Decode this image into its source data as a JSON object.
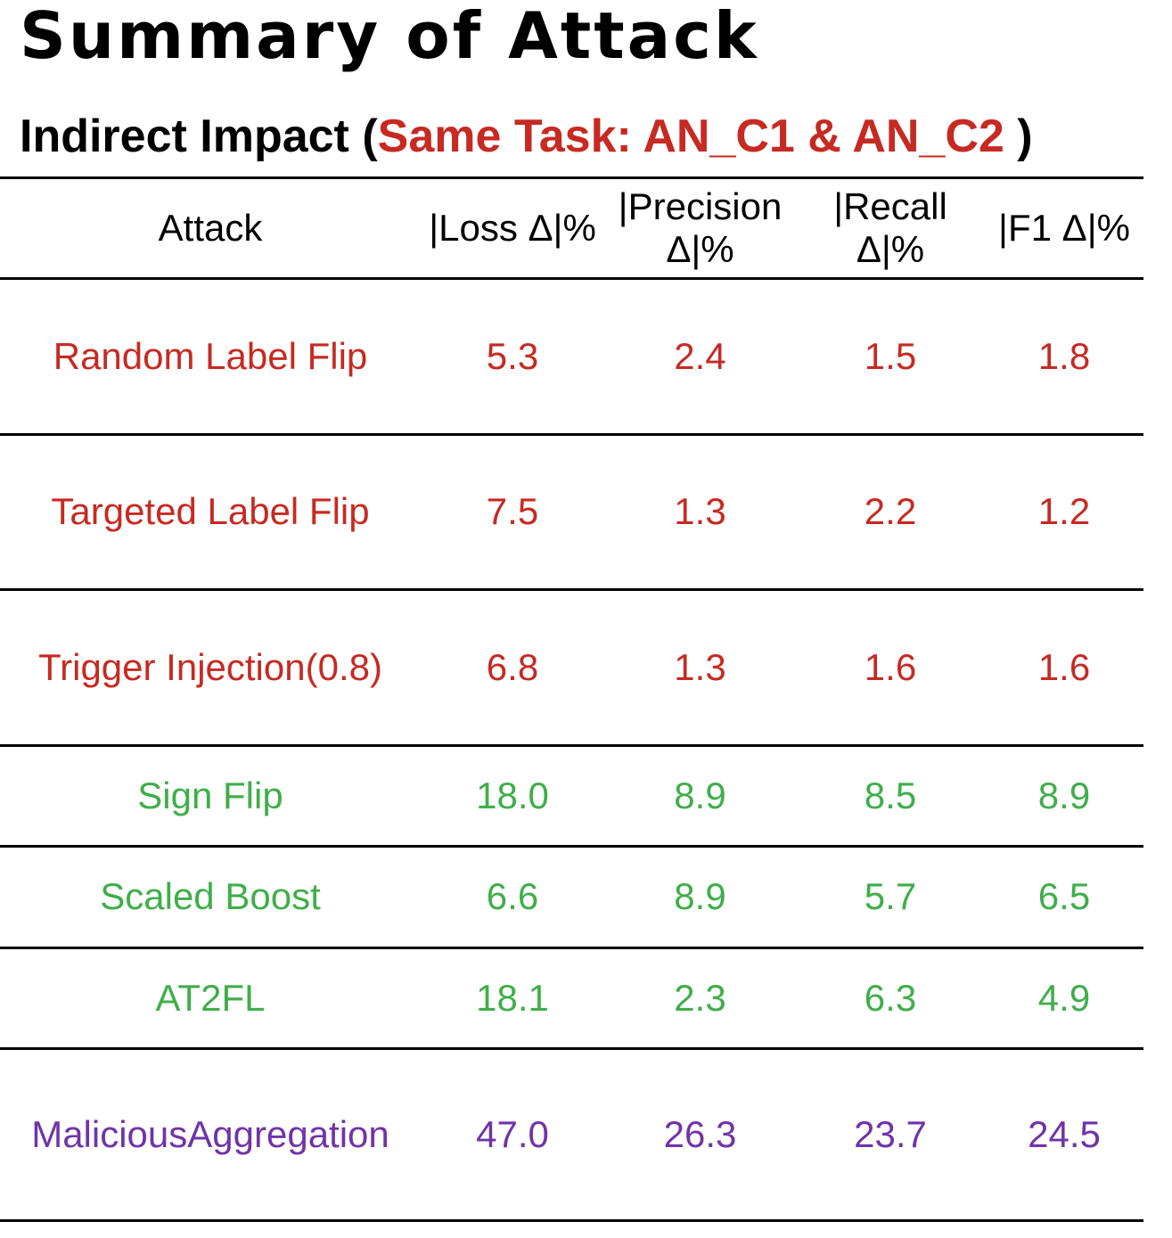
{
  "title": "Summary of Attack",
  "subtitle": {
    "prefix": "Indirect Impact (",
    "highlight": "Same Task: AN_C1 & AN_C2",
    "suffix": " )"
  },
  "colors": {
    "label_flip_group": "#c62a22",
    "model_poison_group": "#3fae49",
    "aggregation_group": "#7133a8",
    "rule": "#000000"
  },
  "table": {
    "headers": [
      "Attack",
      "|Loss Δ|%",
      "|Precision Δ|%",
      "|Recall Δ|%",
      "|F1 Δ|%"
    ],
    "rows": [
      {
        "attack": "Random Label Flip",
        "loss": "5.3",
        "precision": "2.4",
        "recall": "1.5",
        "f1": "1.8",
        "color": "#c62a22"
      },
      {
        "attack": "Targeted Label Flip",
        "loss": "7.5",
        "precision": "1.3",
        "recall": "2.2",
        "f1": "1.2",
        "color": "#c62a22"
      },
      {
        "attack": "Trigger Injection(0.8)",
        "loss": "6.8",
        "precision": "1.3",
        "recall": "1.6",
        "f1": "1.6",
        "color": "#c62a22"
      },
      {
        "attack": "Sign Flip",
        "loss": "18.0",
        "precision": "8.9",
        "recall": "8.5",
        "f1": "8.9",
        "color": "#3fae49"
      },
      {
        "attack": "Scaled Boost",
        "loss": "6.6",
        "precision": "8.9",
        "recall": "5.7",
        "f1": "6.5",
        "color": "#3fae49"
      },
      {
        "attack": "AT2FL",
        "loss": "18.1",
        "precision": "2.3",
        "recall": "6.3",
        "f1": "4.9",
        "color": "#3fae49"
      },
      {
        "attack": "MaliciousAggregation",
        "loss": "47.0",
        "precision": "26.3",
        "recall": "23.7",
        "f1": "24.5",
        "color": "#7133a8"
      }
    ]
  }
}
